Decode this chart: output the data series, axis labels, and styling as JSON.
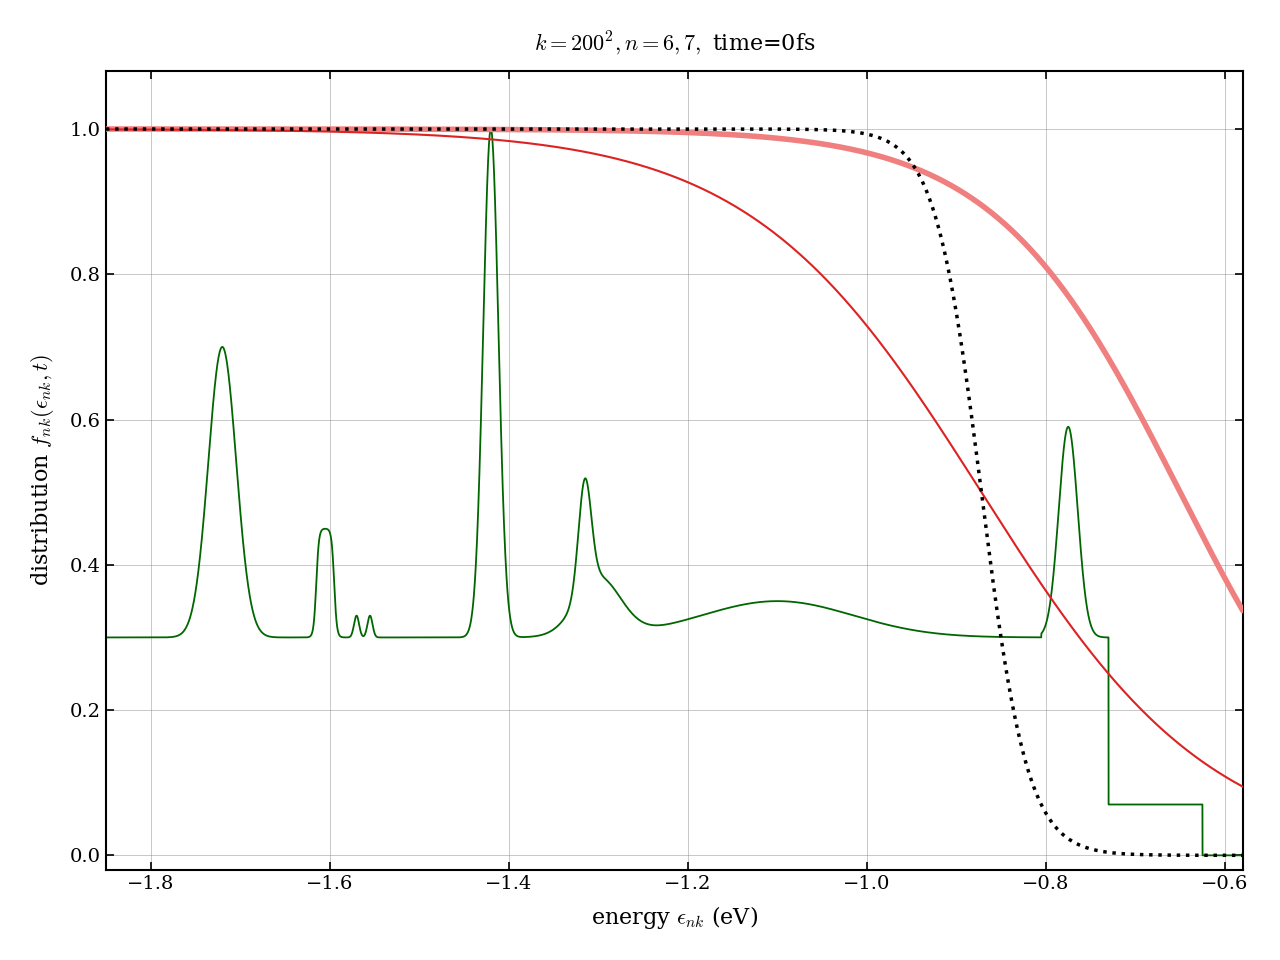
{
  "title": "$k = 200^2, n = 6, 7,$ time=0fs",
  "xlabel": "energy $\\epsilon_{nk}$ (eV)",
  "ylabel": "distribution $f_{nk}(\\epsilon_{nk}, t)$",
  "xlim": [
    -1.85,
    -0.58
  ],
  "ylim": [
    -0.02,
    1.08
  ],
  "xticks": [
    -1.8,
    -1.6,
    -1.4,
    -1.2,
    -1.0,
    -0.8,
    -0.6
  ],
  "yticks": [
    0.0,
    0.2,
    0.4,
    0.6,
    0.8,
    1.0
  ],
  "fd_hot_color": "#dd2222",
  "fd_cold_color": "#000000",
  "dist_color": "#f08080",
  "dos_color": "#006600",
  "T_hot": 1500,
  "T_cold": 300,
  "mu_cold": -0.872,
  "mu_hot": -0.872,
  "mu_dist": -0.65,
  "T_dist": 1200,
  "energy_min": -1.85,
  "energy_max": -0.58,
  "figsize": [
    12.8,
    9.6
  ],
  "dpi": 100
}
